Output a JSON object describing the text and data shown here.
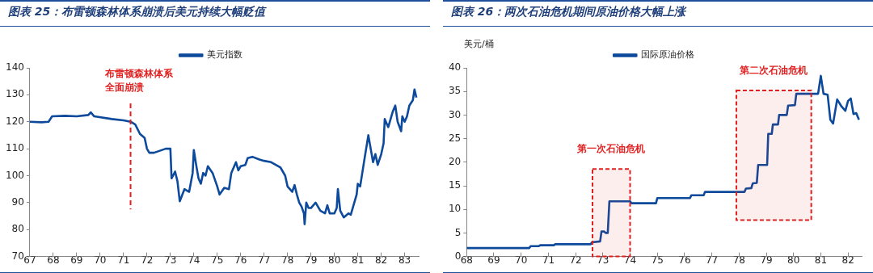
{
  "chart_data": [
    {
      "type": "line",
      "title": "图表 25：布雷顿森林体系崩溃后美元持续大幅贬值",
      "legend": "top",
      "grid": false,
      "marker": "none",
      "line_style": "solid",
      "xlim": [
        67,
        83.6
      ],
      "xticks": [
        67,
        68,
        69,
        70,
        71,
        72,
        73,
        74,
        75,
        76,
        77,
        78,
        79,
        80,
        81,
        82,
        83
      ],
      "ylim": [
        70,
        140
      ],
      "yticks": [
        70,
        80,
        90,
        100,
        110,
        120,
        130,
        140
      ],
      "series": [
        {
          "name": "美元指数",
          "color": "#0d4a9c",
          "x": [
            67.0,
            67.5,
            67.8,
            67.95,
            68.5,
            69.0,
            69.5,
            69.6,
            69.75,
            70.5,
            71.0,
            71.3,
            71.5,
            71.7,
            71.9,
            72.0,
            72.1,
            72.3,
            72.8,
            73.0,
            73.05,
            73.2,
            73.3,
            73.4,
            73.6,
            73.8,
            73.95,
            74.0,
            74.1,
            74.2,
            74.3,
            74.4,
            74.5,
            74.6,
            74.8,
            75.0,
            75.1,
            75.3,
            75.5,
            75.6,
            75.8,
            75.9,
            76.0,
            76.2,
            76.3,
            76.5,
            76.8,
            77.0,
            77.3,
            77.5,
            77.7,
            77.9,
            78.0,
            78.1,
            78.2,
            78.3,
            78.4,
            78.5,
            78.6,
            78.7,
            78.73,
            78.8,
            78.9,
            79.0,
            79.2,
            79.4,
            79.6,
            79.7,
            79.8,
            80.0,
            80.1,
            80.15,
            80.25,
            80.4,
            80.6,
            80.7,
            80.85,
            80.95,
            81.0,
            81.1,
            81.3,
            81.45,
            81.55,
            81.65,
            81.75,
            81.85,
            82.0,
            82.1,
            82.15,
            82.3,
            82.4,
            82.5,
            82.6,
            82.7,
            82.85,
            82.9,
            83.0,
            83.1,
            83.2,
            83.35,
            83.42,
            83.5
          ],
          "values": [
            120,
            119.8,
            120,
            122,
            122.2,
            122,
            122.5,
            123.5,
            122,
            121,
            120.5,
            120,
            119,
            115.5,
            114,
            110,
            108.5,
            108.5,
            110,
            110,
            99,
            101.5,
            98,
            90.5,
            95,
            94,
            101,
            109.5,
            104,
            99,
            97,
            101,
            100,
            103.5,
            101,
            96,
            93,
            95.5,
            95,
            101,
            105,
            102,
            103.5,
            104,
            106.5,
            107,
            106,
            105.5,
            105,
            104,
            103,
            100,
            96,
            95,
            94,
            96.5,
            93,
            90,
            88.5,
            86,
            82,
            90,
            88,
            88,
            90,
            87,
            86,
            89,
            86,
            86,
            88,
            95,
            87,
            84.5,
            86,
            85.5,
            90,
            93,
            97,
            96,
            107,
            115,
            110,
            105,
            108,
            104,
            108,
            112,
            121,
            118,
            121,
            124,
            126,
            120,
            116.5,
            122,
            120,
            122,
            126,
            128,
            132,
            129
          ]
        }
      ],
      "ref_lines": [
        {
          "axis": "x",
          "value": 71.3,
          "label": "布雷顿森林体系全面崩溃",
          "color": "#e02020",
          "line_style": "dashed"
        }
      ]
    },
    {
      "type": "line",
      "title": "图表 26：两次石油危机期间原油价格大幅上涨",
      "ylabel": "美元/桶",
      "legend": "top",
      "grid": false,
      "marker": "none",
      "line_style": "solid",
      "xlim": [
        68,
        82.5
      ],
      "xticks": [
        68,
        69,
        70,
        71,
        72,
        73,
        74,
        75,
        76,
        77,
        78,
        79,
        80,
        81,
        82
      ],
      "ylim": [
        0,
        40
      ],
      "yticks": [
        0,
        5,
        10,
        15,
        20,
        25,
        30,
        35,
        40
      ],
      "series": [
        {
          "name": "国际原油价格",
          "color": "#0d4a9c",
          "x": [
            68,
            70.3,
            70.35,
            70.65,
            70.7,
            71.2,
            71.25,
            72.55,
            72.6,
            72.9,
            72.95,
            73.05,
            73.1,
            73.18,
            73.24,
            74.0,
            74.05,
            74.95,
            75.0,
            76.2,
            76.25,
            76.7,
            76.75,
            78.2,
            78.25,
            78.45,
            78.5,
            78.65,
            78.7,
            79.03,
            79.07,
            79.2,
            79.24,
            79.43,
            79.47,
            79.75,
            79.8,
            80.05,
            80.1,
            80.9,
            81.0,
            81.1,
            81.25,
            81.35,
            81.45,
            81.6,
            81.75,
            81.9,
            82.0,
            82.1,
            82.2,
            82.3,
            82.4
          ],
          "values": [
            1.8,
            1.8,
            2.2,
            2.2,
            2.4,
            2.4,
            2.6,
            2.6,
            3.0,
            3.2,
            5.3,
            5.3,
            5.0,
            5.0,
            11.7,
            11.7,
            11.3,
            11.3,
            12.4,
            12.4,
            13.0,
            13.0,
            13.7,
            13.7,
            14.4,
            14.5,
            15.5,
            15.6,
            19.4,
            19.4,
            26,
            26,
            28,
            28,
            30,
            30,
            32,
            32.1,
            34.5,
            34.5,
            38.3,
            34.5,
            34.3,
            29,
            28.2,
            33.3,
            31.9,
            30.9,
            33,
            33.5,
            30.2,
            30.4,
            29.0
          ]
        }
      ],
      "bands": [
        {
          "axis": "x",
          "from": 72.62,
          "to": 74.0,
          "label": "第一次石油危机",
          "color": "#e02020"
        },
        {
          "axis": "x",
          "from": 77.9,
          "to": 80.65,
          "label": "第二次石油危机",
          "color": "#e02020"
        }
      ]
    }
  ]
}
